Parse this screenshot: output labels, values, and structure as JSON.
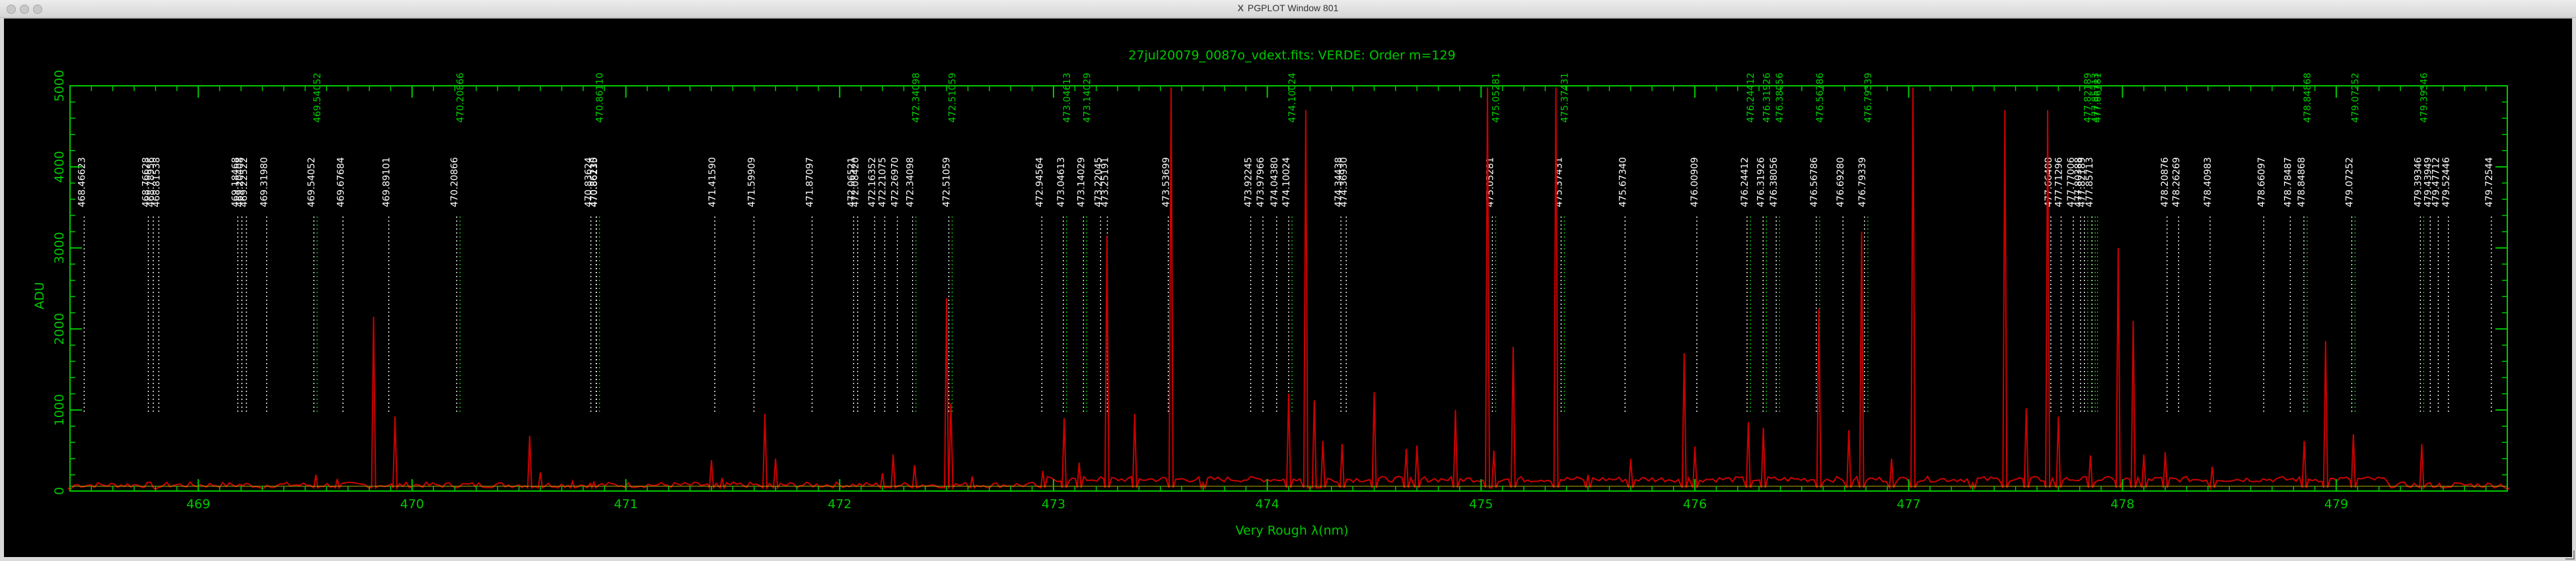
{
  "window": {
    "title": "PGPLOT Window 801",
    "x_glyph": "X"
  },
  "chart_data": {
    "type": "line",
    "title": "27jul20079_0087o_vdext.fits: VERDE: Order m=129",
    "xlabel": "Very Rough λ(nm)",
    "ylabel": "ADU",
    "xlim": [
      468.4,
      479.8
    ],
    "ylim": [
      0,
      5000
    ],
    "xticks": [
      469,
      470,
      471,
      472,
      473,
      474,
      475,
      476,
      477,
      478,
      479
    ],
    "yticks": [
      0,
      1000,
      2000,
      3000,
      4000,
      5000
    ],
    "colors": {
      "frame": "#00c800",
      "spectrum": "#cc0000",
      "continuum": "#c8c800",
      "line_white": "#ffffff",
      "line_green": "#00d000"
    },
    "series": [
      {
        "values": [
          [
            468.4,
            15
          ],
          [
            468.8,
            20
          ],
          [
            469.3,
            30
          ],
          [
            469.55,
            200
          ],
          [
            469.65,
            150
          ],
          [
            469.82,
            2150
          ],
          [
            469.92,
            920
          ],
          [
            470.55,
            680
          ],
          [
            470.6,
            230
          ],
          [
            470.75,
            120
          ],
          [
            470.85,
            110
          ],
          [
            471.4,
            380
          ],
          [
            471.45,
            160
          ],
          [
            471.65,
            950
          ],
          [
            471.7,
            400
          ],
          [
            472.2,
            220
          ],
          [
            472.25,
            450
          ],
          [
            472.35,
            320
          ],
          [
            472.5,
            2380
          ],
          [
            472.52,
            1080
          ],
          [
            472.62,
            180
          ],
          [
            472.95,
            250
          ],
          [
            473.05,
            900
          ],
          [
            473.12,
            350
          ],
          [
            473.25,
            3150
          ],
          [
            473.38,
            950
          ],
          [
            473.55,
            4980
          ],
          [
            473.7,
            100
          ],
          [
            474.1,
            1200
          ],
          [
            474.18,
            4700
          ],
          [
            474.22,
            1120
          ],
          [
            474.26,
            620
          ],
          [
            474.35,
            580
          ],
          [
            474.5,
            1220
          ],
          [
            474.65,
            520
          ],
          [
            474.7,
            560
          ],
          [
            474.88,
            1000
          ],
          [
            475.03,
            4980
          ],
          [
            475.06,
            500
          ],
          [
            475.15,
            1780
          ],
          [
            475.35,
            4980
          ],
          [
            475.5,
            200
          ],
          [
            475.7,
            400
          ],
          [
            475.95,
            1700
          ],
          [
            476.0,
            550
          ],
          [
            476.25,
            850
          ],
          [
            476.32,
            780
          ],
          [
            476.58,
            2250
          ],
          [
            476.72,
            750
          ],
          [
            476.78,
            3200
          ],
          [
            476.92,
            400
          ],
          [
            477.02,
            4980
          ],
          [
            477.3,
            100
          ],
          [
            477.45,
            4700
          ],
          [
            477.55,
            1020
          ],
          [
            477.65,
            4700
          ],
          [
            477.7,
            920
          ],
          [
            477.85,
            440
          ],
          [
            477.98,
            3000
          ],
          [
            478.05,
            2100
          ],
          [
            478.1,
            450
          ],
          [
            478.2,
            480
          ],
          [
            478.42,
            300
          ],
          [
            478.85,
            620
          ],
          [
            478.95,
            1850
          ],
          [
            479.08,
            700
          ],
          [
            479.4,
            580
          ],
          [
            479.5,
            50
          ],
          [
            479.8,
            20
          ]
        ]
      }
    ],
    "lines": [
      {
        "x": 468.46623,
        "label": "468.46623",
        "color": "white"
      },
      {
        "x": 468.76628,
        "label": "468.76628",
        "color": "white"
      },
      {
        "x": 468.78956,
        "label": "468.78956",
        "color": "white"
      },
      {
        "x": 468.81538,
        "label": "468.81538",
        "color": "white"
      },
      {
        "x": 469.18468,
        "label": "469.18468",
        "color": "white"
      },
      {
        "x": 469.20408,
        "label": "469.20408",
        "color": "white"
      },
      {
        "x": 469.22522,
        "label": "469.22522",
        "color": "white"
      },
      {
        "x": 469.3198,
        "label": "469.31980",
        "color": "white"
      },
      {
        "x": 469.54052,
        "label": "469.54052",
        "color": "white"
      },
      {
        "x": 469.54052,
        "label": "469.54052",
        "color": "green"
      },
      {
        "x": 469.67684,
        "label": "469.67684",
        "color": "white"
      },
      {
        "x": 469.89101,
        "label": "469.89101",
        "color": "white"
      },
      {
        "x": 470.20866,
        "label": "470.20866",
        "color": "white"
      },
      {
        "x": 470.20866,
        "label": "470.20866",
        "color": "green"
      },
      {
        "x": 470.83624,
        "label": "470.83624",
        "color": "white"
      },
      {
        "x": 470.86235,
        "label": "470.86235",
        "color": "white"
      },
      {
        "x": 470.8611,
        "label": "470.86110",
        "color": "white"
      },
      {
        "x": 470.8611,
        "label": "470.86110",
        "color": "green"
      },
      {
        "x": 471.4159,
        "label": "471.41590",
        "color": "white"
      },
      {
        "x": 471.59909,
        "label": "471.59909",
        "color": "white"
      },
      {
        "x": 471.87097,
        "label": "471.87097",
        "color": "white"
      },
      {
        "x": 472.06521,
        "label": "472.06521",
        "color": "white"
      },
      {
        "x": 472.0842,
        "label": "472.08420",
        "color": "white"
      },
      {
        "x": 472.16352,
        "label": "472.16352",
        "color": "white"
      },
      {
        "x": 472.21075,
        "label": "472.21075",
        "color": "white"
      },
      {
        "x": 472.2697,
        "label": "472.26970",
        "color": "white"
      },
      {
        "x": 472.34098,
        "label": "472.34098",
        "color": "white"
      },
      {
        "x": 472.34098,
        "label": "472.34098",
        "color": "green"
      },
      {
        "x": 472.51059,
        "label": "472.51059",
        "color": "white"
      },
      {
        "x": 472.51059,
        "label": "472.51059",
        "color": "green"
      },
      {
        "x": 472.94564,
        "label": "472.94564",
        "color": "white"
      },
      {
        "x": 473.04613,
        "label": "473.04613",
        "color": "white"
      },
      {
        "x": 473.04613,
        "label": "473.04613",
        "color": "green"
      },
      {
        "x": 473.14029,
        "label": "473.14029",
        "color": "white"
      },
      {
        "x": 473.14029,
        "label": "473.14029",
        "color": "green"
      },
      {
        "x": 473.22045,
        "label": "473.22045",
        "color": "white"
      },
      {
        "x": 473.25191,
        "label": "473.25191",
        "color": "white"
      },
      {
        "x": 473.53699,
        "label": "473.53699",
        "color": "white"
      },
      {
        "x": 473.92245,
        "label": "473.92245",
        "color": "white"
      },
      {
        "x": 473.97966,
        "label": "473.97966",
        "color": "white"
      },
      {
        "x": 474.0438,
        "label": "474.04380",
        "color": "white"
      },
      {
        "x": 474.10024,
        "label": "474.10024",
        "color": "white"
      },
      {
        "x": 474.10024,
        "label": "474.10024",
        "color": "green"
      },
      {
        "x": 474.34438,
        "label": "474.34438",
        "color": "white"
      },
      {
        "x": 474.3693,
        "label": "474.36930",
        "color": "white"
      },
      {
        "x": 475.05281,
        "label": "475.05281",
        "color": "white"
      },
      {
        "x": 475.05281,
        "label": "475.05281",
        "color": "green"
      },
      {
        "x": 475.37431,
        "label": "475.37431",
        "color": "white"
      },
      {
        "x": 475.37431,
        "label": "475.37431",
        "color": "green"
      },
      {
        "x": 475.6734,
        "label": "475.67340",
        "color": "white"
      },
      {
        "x": 476.00909,
        "label": "476.00909",
        "color": "white"
      },
      {
        "x": 476.24412,
        "label": "476.24412",
        "color": "white"
      },
      {
        "x": 476.24412,
        "label": "476.24412",
        "color": "green"
      },
      {
        "x": 476.31926,
        "label": "476.31926",
        "color": "white"
      },
      {
        "x": 476.31926,
        "label": "476.31926",
        "color": "green"
      },
      {
        "x": 476.38056,
        "label": "476.38056",
        "color": "white"
      },
      {
        "x": 476.38056,
        "label": "476.38056",
        "color": "green"
      },
      {
        "x": 476.56786,
        "label": "476.56786",
        "color": "white"
      },
      {
        "x": 476.56786,
        "label": "476.56786",
        "color": "green"
      },
      {
        "x": 476.6928,
        "label": "476.69280",
        "color": "white"
      },
      {
        "x": 476.79339,
        "label": "476.79339",
        "color": "white"
      },
      {
        "x": 476.79339,
        "label": "476.79339",
        "color": "green"
      },
      {
        "x": 477.66488,
        "label": "477.66488",
        "color": "white"
      },
      {
        "x": 477.71296,
        "label": "477.71296",
        "color": "white"
      },
      {
        "x": 477.77006,
        "label": "477.77006",
        "color": "white"
      },
      {
        "x": 477.80388,
        "label": "477.80388",
        "color": "white"
      },
      {
        "x": 477.82189,
        "label": "477.82189",
        "color": "white"
      },
      {
        "x": 477.85713,
        "label": "477.85713",
        "color": "white"
      },
      {
        "x": 477.82189,
        "label": "477.82189",
        "color": "green"
      },
      {
        "x": 477.85713,
        "label": "477.85713",
        "color": "green"
      },
      {
        "x": 477.86781,
        "label": "477.86781",
        "color": "green"
      },
      {
        "x": 478.20876,
        "label": "478.20876",
        "color": "white"
      },
      {
        "x": 478.26269,
        "label": "478.26269",
        "color": "white"
      },
      {
        "x": 478.40983,
        "label": "478.40983",
        "color": "white"
      },
      {
        "x": 478.66097,
        "label": "478.66097",
        "color": "white"
      },
      {
        "x": 478.78487,
        "label": "478.78487",
        "color": "white"
      },
      {
        "x": 478.84868,
        "label": "478.84868",
        "color": "white"
      },
      {
        "x": 478.84868,
        "label": "478.84868",
        "color": "green"
      },
      {
        "x": 479.07252,
        "label": "479.07252",
        "color": "white"
      },
      {
        "x": 479.07252,
        "label": "479.07252",
        "color": "green"
      },
      {
        "x": 479.39346,
        "label": "479.39346",
        "color": "white"
      },
      {
        "x": 479.39346,
        "label": "479.39346",
        "color": "green"
      },
      {
        "x": 479.43949,
        "label": "479.43949",
        "color": "white"
      },
      {
        "x": 479.47712,
        "label": "479.47712",
        "color": "white"
      },
      {
        "x": 479.52446,
        "label": "479.52446",
        "color": "white"
      },
      {
        "x": 479.72544,
        "label": "479.72544",
        "color": "white"
      }
    ]
  }
}
